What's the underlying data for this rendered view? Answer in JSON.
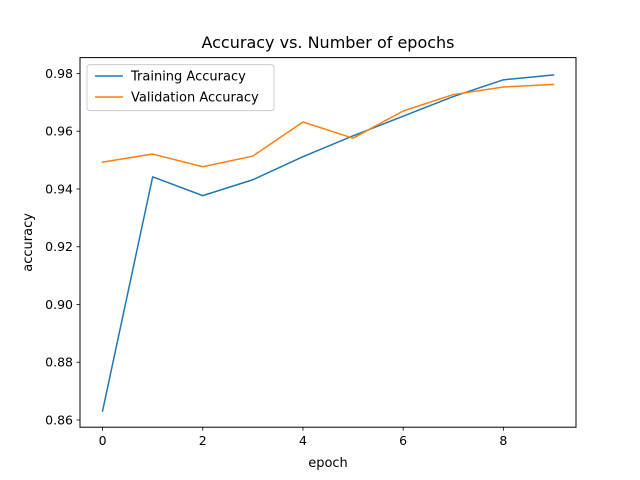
{
  "chart_data": {
    "type": "line",
    "title": "Accuracy vs. Number of epochs",
    "xlabel": "epoch",
    "ylabel": "accuracy",
    "xlim": [
      -0.45,
      9.45
    ],
    "ylim": [
      0.8575,
      0.9855
    ],
    "xticks": [
      0,
      2,
      4,
      6,
      8
    ],
    "xtick_labels": [
      "0",
      "2",
      "4",
      "6",
      "8"
    ],
    "yticks": [
      0.86,
      0.88,
      0.9,
      0.92,
      0.94,
      0.96,
      0.98
    ],
    "ytick_labels": [
      "0.86",
      "0.88",
      "0.90",
      "0.92",
      "0.94",
      "0.96",
      "0.98"
    ],
    "grid": false,
    "legend_position": "top-left",
    "x": [
      0,
      1,
      2,
      3,
      4,
      5,
      6,
      7,
      8,
      9
    ],
    "series": [
      {
        "name": "Training Accuracy",
        "color": "#1f77b4",
        "values": [
          0.8631,
          0.9442,
          0.9377,
          0.9432,
          0.9512,
          0.9584,
          0.9652,
          0.972,
          0.9778,
          0.9795
        ]
      },
      {
        "name": "Validation Accuracy",
        "color": "#ff7f0e",
        "values": [
          0.9493,
          0.9521,
          0.9477,
          0.9514,
          0.9632,
          0.9576,
          0.967,
          0.9727,
          0.9753,
          0.9762
        ]
      }
    ]
  }
}
